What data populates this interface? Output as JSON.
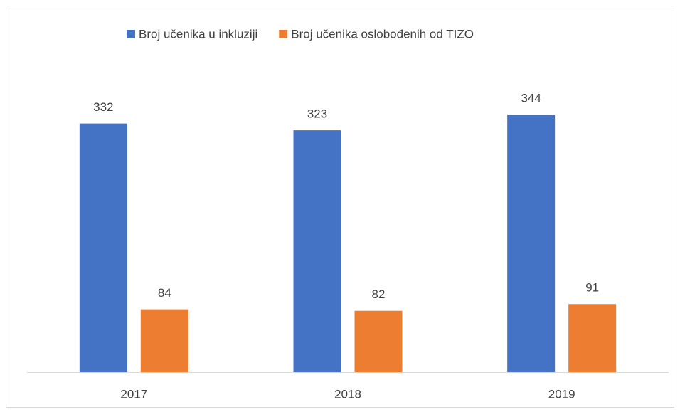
{
  "chart_data": {
    "type": "bar",
    "categories": [
      "2017",
      "2018",
      "2019"
    ],
    "series": [
      {
        "name": "Broj učenika u inkluziji",
        "color": "#4472c4",
        "values": [
          332,
          323,
          344
        ]
      },
      {
        "name": "Broj učenika oslobođenih od TIZO",
        "color": "#ed7d31",
        "values": [
          84,
          82,
          91
        ]
      }
    ],
    "legend": "top"
  }
}
